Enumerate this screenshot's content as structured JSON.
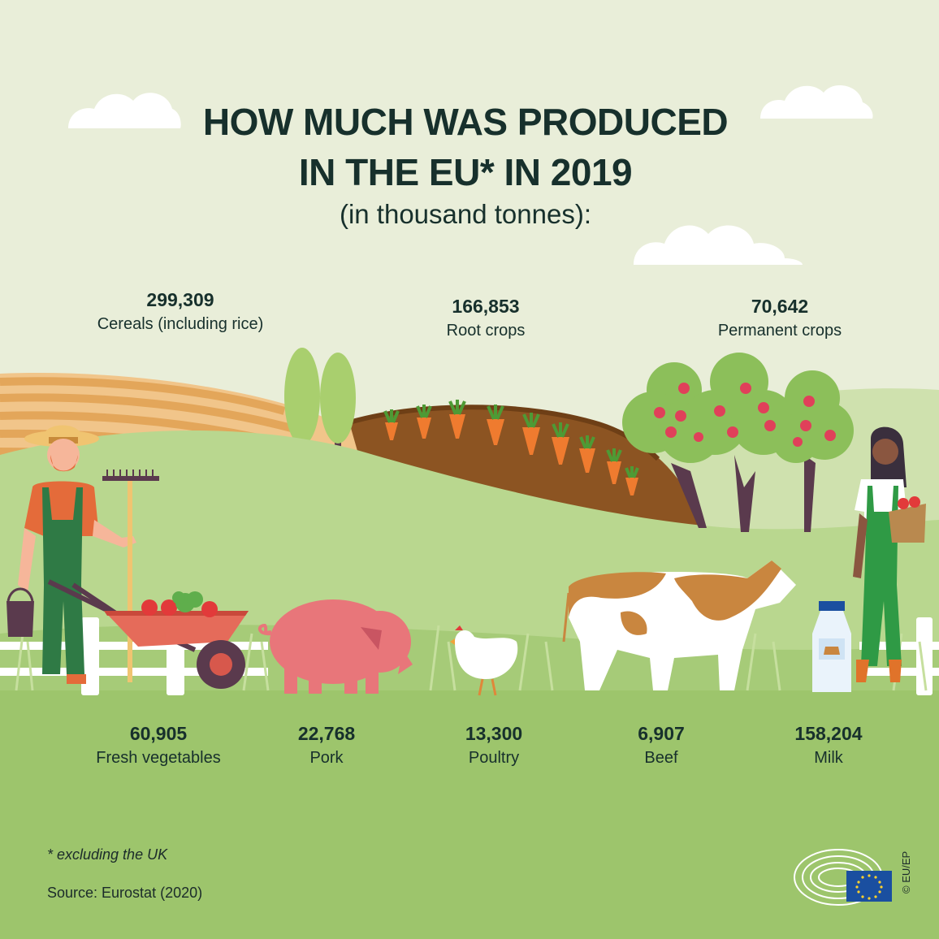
{
  "title": {
    "line1": "HOW MUCH WAS PRODUCED",
    "line2": "IN THE EU* IN 2019",
    "subtitle": "(in thousand tonnes):"
  },
  "top_stats": [
    {
      "value": "299,309",
      "label": "Cereals (including rice)"
    },
    {
      "value": "166,853",
      "label": "Root crops"
    },
    {
      "value": "70,642",
      "label": "Permanent crops"
    }
  ],
  "bottom_stats": [
    {
      "value": "60,905",
      "label": "Fresh vegetables"
    },
    {
      "value": "22,768",
      "label": "Pork"
    },
    {
      "value": "13,300",
      "label": "Poultry"
    },
    {
      "value": "6,907",
      "label": "Beef"
    },
    {
      "value": "158,204",
      "label": "Milk"
    }
  ],
  "footnote": "* excluding the UK",
  "source": "Source: Eurostat (2020)",
  "copyright": "© EU/EP",
  "colors": {
    "background": "#e9eed9",
    "grass": "#9dc56c",
    "hill": "#b9d78f",
    "field_stripe": "#e3a65a",
    "soil": "#8c5422",
    "text": "#17302c",
    "eu_flag": "#1a4fa0"
  }
}
